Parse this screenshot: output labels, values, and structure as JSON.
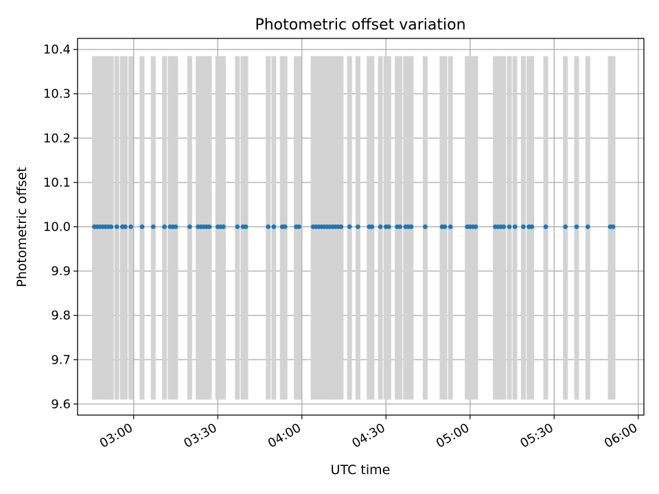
{
  "chart_data": {
    "type": "scatter",
    "title": "Photometric offset variation",
    "xlabel": "UTC time",
    "ylabel": "Photometric offset",
    "x_ticks": [
      "03:00",
      "03:30",
      "04:00",
      "04:30",
      "05:00",
      "05:30",
      "06:00"
    ],
    "y_ticks": [
      "9.6",
      "9.7",
      "9.8",
      "9.9",
      "10.0",
      "10.1",
      "10.2",
      "10.3",
      "10.4"
    ],
    "xlim": [
      "02:40",
      "06:02"
    ],
    "ylim": [
      9.575,
      10.425
    ],
    "grid": true,
    "colors": {
      "points": "#1f77b4",
      "bands": "#d3d3d3",
      "grid": "#b0b0b0"
    },
    "bands": {
      "y_range": [
        9.61,
        10.385
      ],
      "times": [
        "02:46",
        "02:47",
        "02:48",
        "02:49",
        "02:50",
        "02:51",
        "02:52",
        "02:54",
        "02:56",
        "02:57",
        "02:59",
        "03:03",
        "03:07",
        "03:11",
        "03:13",
        "03:14",
        "03:15",
        "03:20",
        "03:23",
        "03:24",
        "03:25",
        "03:26",
        "03:27",
        "03:30",
        "03:31",
        "03:32",
        "03:37",
        "03:39",
        "03:40",
        "03:48",
        "03:50",
        "03:53",
        "03:54",
        "03:58",
        "03:59",
        "04:04",
        "04:05",
        "04:06",
        "04:07",
        "04:08",
        "04:09",
        "04:10",
        "04:11",
        "04:12",
        "04:13",
        "04:14",
        "04:17",
        "04:20",
        "04:24",
        "04:25",
        "04:28",
        "04:30",
        "04:31",
        "04:34",
        "04:35",
        "04:37",
        "04:38",
        "04:39",
        "04:44",
        "04:50",
        "04:51",
        "04:53",
        "04:59",
        "05:00",
        "05:01",
        "05:02",
        "05:09",
        "05:10",
        "05:11",
        "05:12",
        "05:14",
        "05:16",
        "05:19",
        "05:21",
        "05:22",
        "05:27",
        "05:34",
        "05:38",
        "05:42",
        "05:50",
        "05:51"
      ]
    },
    "series": [
      {
        "x": [
          "02:46",
          "02:47",
          "02:48",
          "02:49",
          "02:50",
          "02:51",
          "02:52",
          "02:54",
          "02:56",
          "02:57",
          "02:59",
          "03:03",
          "03:07",
          "03:11",
          "03:13",
          "03:14",
          "03:15",
          "03:20",
          "03:23",
          "03:24",
          "03:25",
          "03:26",
          "03:27",
          "03:30",
          "03:31",
          "03:32",
          "03:37",
          "03:39",
          "03:40",
          "03:48",
          "03:50",
          "03:53",
          "03:54",
          "03:58",
          "03:59",
          "04:04",
          "04:05",
          "04:06",
          "04:07",
          "04:08",
          "04:09",
          "04:10",
          "04:11",
          "04:12",
          "04:13",
          "04:14",
          "04:17",
          "04:20",
          "04:24",
          "04:25",
          "04:28",
          "04:30",
          "04:31",
          "04:34",
          "04:35",
          "04:37",
          "04:38",
          "04:39",
          "04:44",
          "04:50",
          "04:51",
          "04:53",
          "04:59",
          "05:00",
          "05:01",
          "05:02",
          "05:09",
          "05:10",
          "05:11",
          "05:12",
          "05:14",
          "05:16",
          "05:19",
          "05:21",
          "05:22",
          "05:27",
          "05:34",
          "05:38",
          "05:42",
          "05:50",
          "05:51"
        ],
        "y_constant": 10.0
      }
    ]
  }
}
